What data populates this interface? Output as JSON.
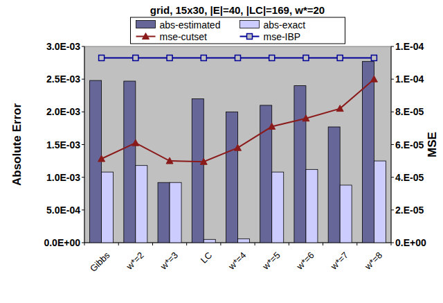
{
  "chart_data": {
    "type": "bar",
    "title": "grid, 15x30, |E|=40, |LC|=169, w*=20",
    "y_label": "Absolute Error",
    "y2_label": "MSE",
    "categories": [
      "Gibbs",
      "w*=2",
      "w*=3",
      "LC",
      "w*=4",
      "w*=5",
      "w*=6",
      "w*=7",
      "w*=8"
    ],
    "series": [
      {
        "name": "abs-estimated",
        "color": "#666699",
        "type": "bar",
        "values": [
          0.00248,
          0.00247,
          0.00092,
          0.0022,
          0.002,
          0.0021,
          0.0024,
          0.00177,
          0.00277
        ]
      },
      {
        "name": "abs-exact",
        "color": "#ccccff",
        "type": "bar",
        "values": [
          0.00108,
          0.00118,
          0.00092,
          5e-05,
          6e-05,
          0.00108,
          0.00112,
          0.00088,
          0.00125
        ]
      },
      {
        "name": "mse-cutset",
        "color": "#8b1a1a",
        "type": "line",
        "axis": "y2",
        "marker": "triangle",
        "values": [
          5.13e-05,
          6.1e-05,
          5e-05,
          4.95e-05,
          5.8e-05,
          7.1e-05,
          7.6e-05,
          8.2e-05,
          0.0001
        ]
      },
      {
        "name": "mse-IBP",
        "color": "#000099",
        "type": "line",
        "axis": "y2",
        "marker": "square",
        "values": [
          0.000113,
          0.000113,
          0.000113,
          0.000113,
          0.000113,
          0.000113,
          0.000113,
          0.000113,
          0.000113
        ]
      }
    ],
    "ylim": [
      0,
      0.003
    ],
    "yticks": [
      {
        "value": 0,
        "label": "0.0E+00"
      },
      {
        "value": 0.0005,
        "label": "5.0E-04"
      },
      {
        "value": 0.001,
        "label": "1.0E-03"
      },
      {
        "value": 0.0015,
        "label": "1.5E-03"
      },
      {
        "value": 0.002,
        "label": "2.0E-03"
      },
      {
        "value": 0.0025,
        "label": "2.5E-03"
      },
      {
        "value": 0.003,
        "label": "3.0E-03"
      }
    ],
    "y2lim": [
      0,
      0.00012
    ],
    "y2ticks": [
      {
        "value": 0,
        "label": "0.E+00"
      },
      {
        "value": 2e-05,
        "label": "2.E-05"
      },
      {
        "value": 4e-05,
        "label": "4.E-05"
      },
      {
        "value": 6e-05,
        "label": "6.E-05"
      },
      {
        "value": 8e-05,
        "label": "8.E-05"
      },
      {
        "value": 0.0001,
        "label": "1.E-04"
      },
      {
        "value": 0.00012,
        "label": "1.E-04"
      }
    ],
    "grid": false,
    "legend": "top"
  }
}
